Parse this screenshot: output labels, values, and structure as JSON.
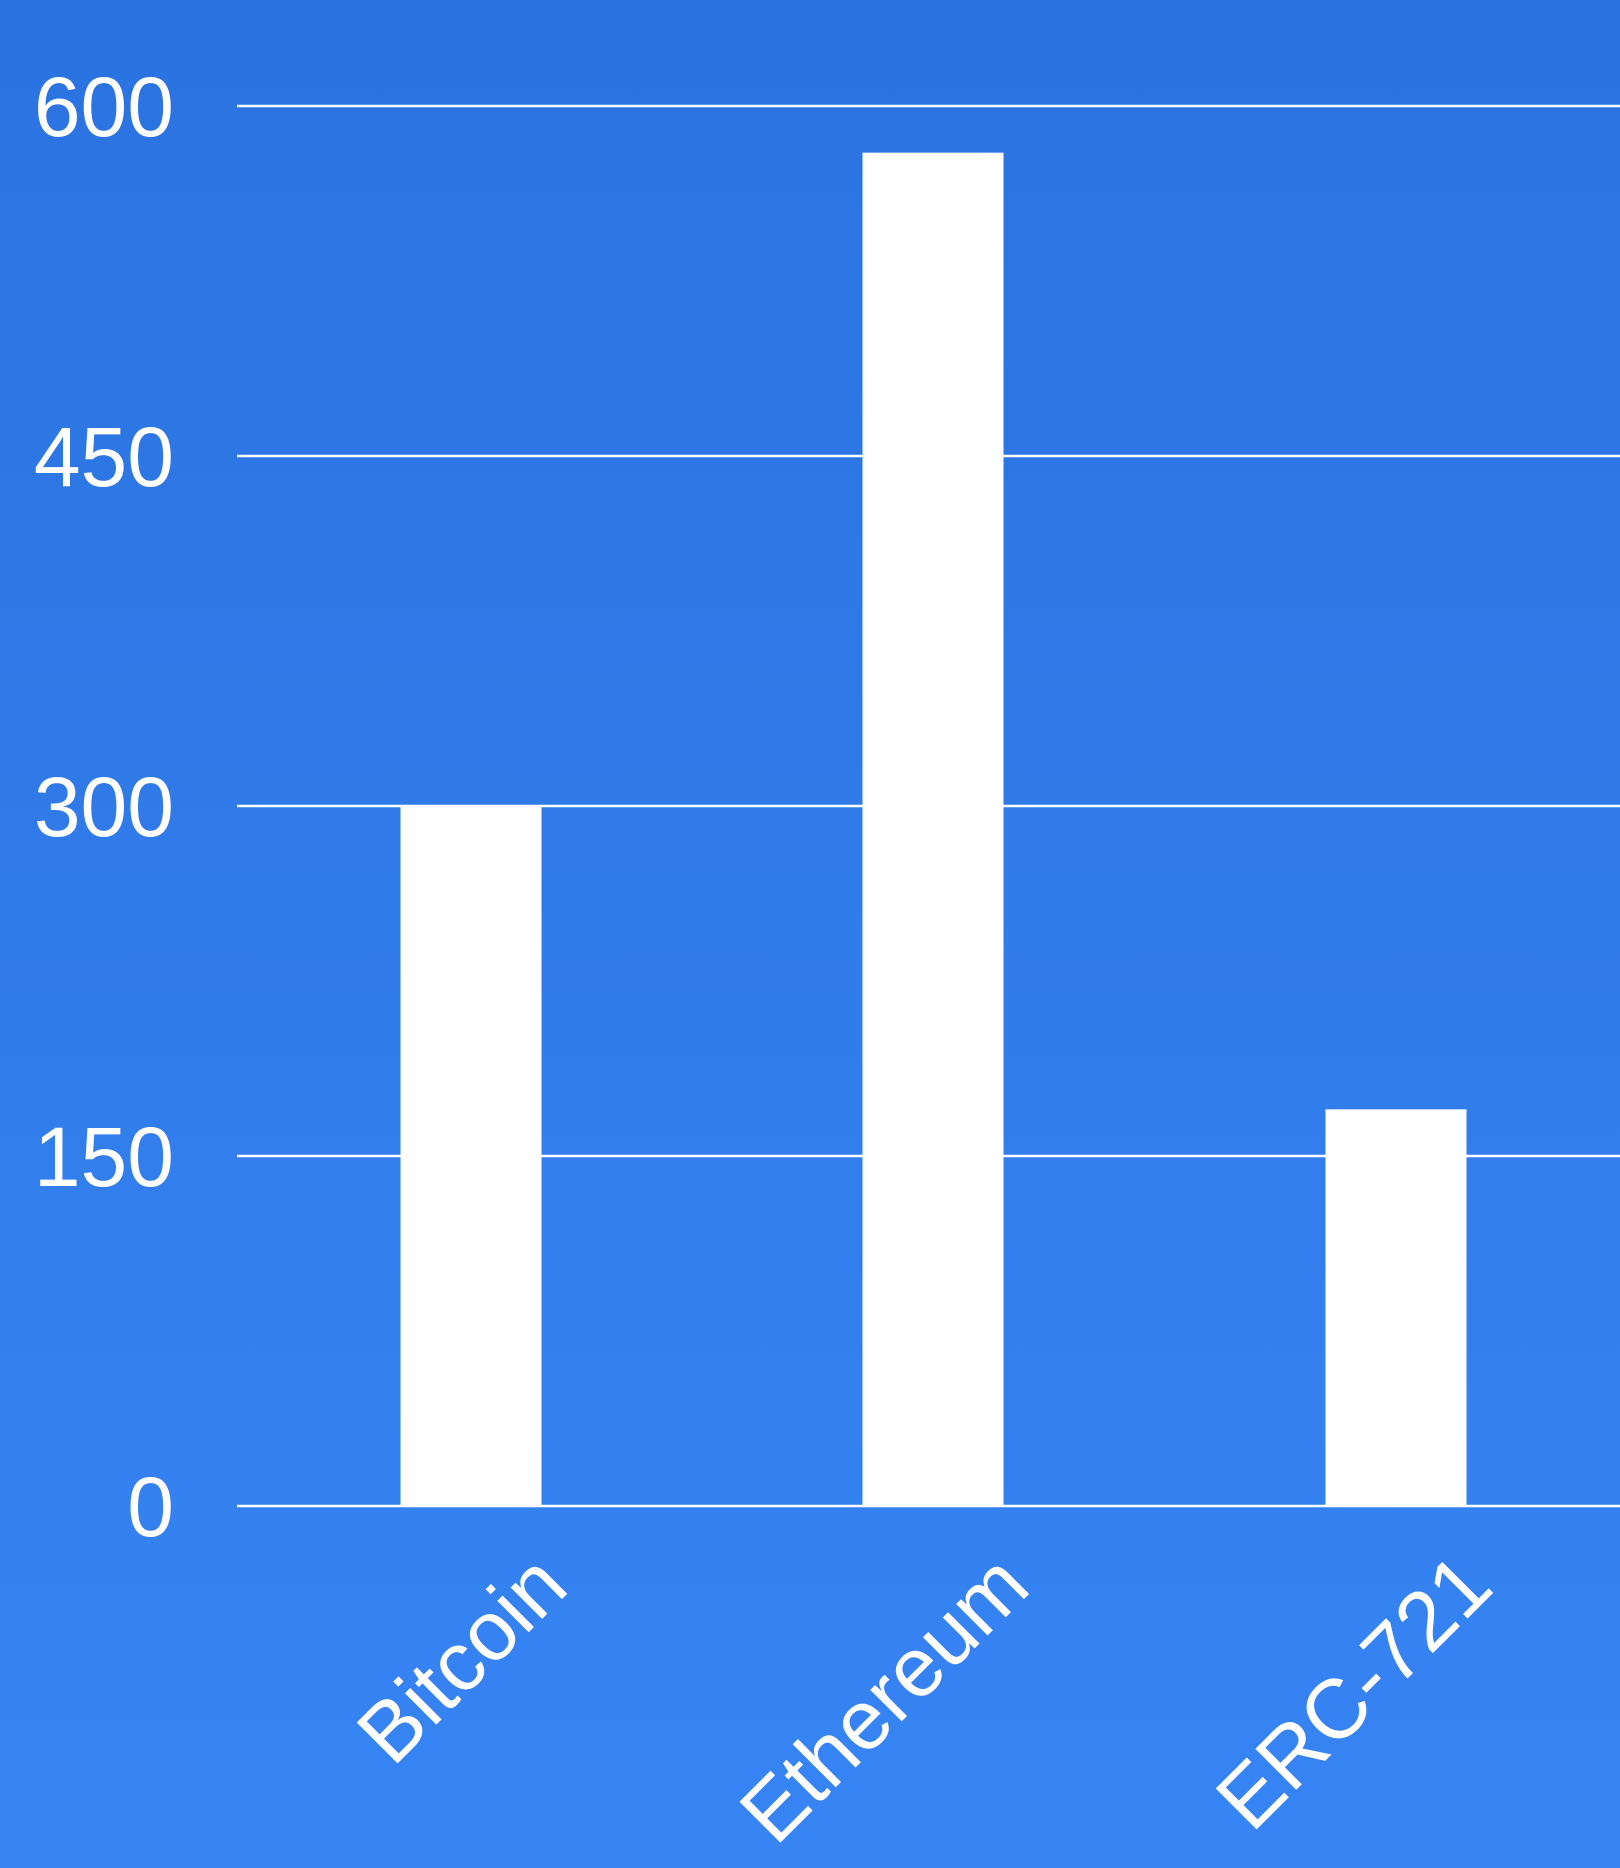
{
  "chart_data": {
    "type": "bar",
    "categories": [
      "Bitcoin",
      "Ethereum",
      "ERC-721"
    ],
    "values": [
      300,
      580,
      170
    ],
    "title": "",
    "xlabel": "",
    "ylabel": "",
    "ylim": [
      0,
      600
    ],
    "yticks": [
      0,
      150,
      300,
      450,
      600
    ],
    "ytick_labels": [
      "0",
      "150",
      "300",
      "450",
      "600"
    ],
    "grid": true,
    "colors": {
      "background_top": "#2a73e0",
      "background_bottom": "#3784f4",
      "bar": "#ffffff",
      "grid": "#ffffff",
      "text": "#ffffff"
    }
  }
}
